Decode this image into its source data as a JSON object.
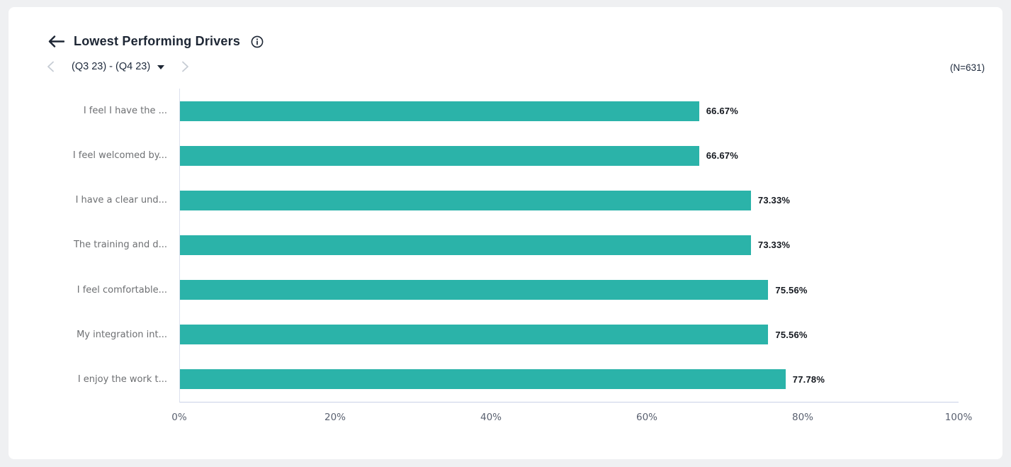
{
  "page": {
    "background_color": "#eff0f2",
    "card_color": "#ffffff"
  },
  "header": {
    "title": "Lowest Performing Drivers",
    "back_icon": "arrow-left",
    "info_icon": "info-circle"
  },
  "period_selector": {
    "prev_icon": "chevron-left",
    "label": "(Q3 23) - (Q4 23)",
    "caret_icon": "caret-down",
    "next_icon": "chevron-right"
  },
  "sample_size_label": "(N=631)",
  "chart_data": {
    "type": "bar",
    "orientation": "horizontal",
    "title": "Lowest Performing Drivers",
    "categories": [
      "I feel I have the ...",
      "I feel welcomed by...",
      "I have a clear und...",
      "The training and d...",
      "I feel comfortable...",
      "My integration int...",
      "I enjoy the work t..."
    ],
    "values": [
      66.67,
      66.67,
      73.33,
      73.33,
      75.56,
      75.56,
      77.78
    ],
    "value_labels": [
      "66.67%",
      "66.67%",
      "73.33%",
      "73.33%",
      "75.56%",
      "75.56%",
      "77.78%"
    ],
    "xlim": [
      0,
      100
    ],
    "x_ticks": [
      "0%",
      "20%",
      "40%",
      "60%",
      "80%",
      "100%"
    ],
    "xlabel": "",
    "ylabel": "",
    "grid": "off",
    "legend": "none",
    "bar_color": "#2bb3a9",
    "axis_line_color": "#dce1ee"
  }
}
